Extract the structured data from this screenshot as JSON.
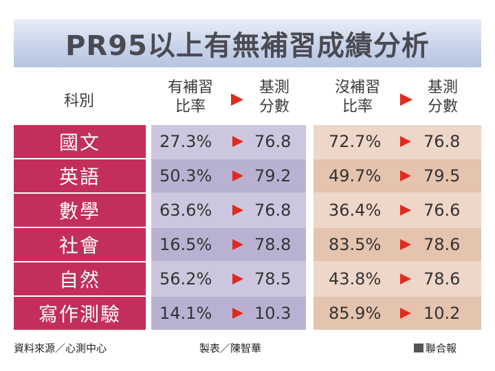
{
  "title": "PR95以上有無補習成績分析",
  "headers": {
    "subject": "科別",
    "tutored_rate": [
      "有補習",
      "比率"
    ],
    "score_1": [
      "基測",
      "分數"
    ],
    "untutored_rate": [
      "沒補習",
      "比率"
    ],
    "score_2": [
      "基測",
      "分數"
    ]
  },
  "rows": [
    {
      "subject": "國文",
      "tutored_rate": "27.3%",
      "tutored_score": "76.8",
      "untutored_rate": "72.7%",
      "untutored_score": "76.8"
    },
    {
      "subject": "英語",
      "tutored_rate": "50.3%",
      "tutored_score": "79.2",
      "untutored_rate": "49.7%",
      "untutored_score": "79.5"
    },
    {
      "subject": "數學",
      "tutored_rate": "63.6%",
      "tutored_score": "76.8",
      "untutored_rate": "36.4%",
      "untutored_score": "76.6"
    },
    {
      "subject": "社會",
      "tutored_rate": "16.5%",
      "tutored_score": "78.8",
      "untutored_rate": "83.5%",
      "untutored_score": "78.6"
    },
    {
      "subject": "自然",
      "tutored_rate": "56.2%",
      "tutored_score": "78.5",
      "untutored_rate": "43.8%",
      "untutored_score": "78.6"
    },
    {
      "subject": "寫作測驗",
      "tutored_rate": "14.1%",
      "tutored_score": "10.3",
      "untutored_rate": "85.9%",
      "untutored_score": "10.2"
    }
  ],
  "footer": {
    "source": "資料來源／心測中心",
    "compiler": "製表／陳智華",
    "publisher": "聯合報"
  },
  "colors": {
    "subject_bg": "#c32f5a",
    "arrow": "#e12a1e",
    "left_band": "#ccc6de",
    "right_band": "#eed6c8",
    "title_bg": "#c9d4ea"
  }
}
